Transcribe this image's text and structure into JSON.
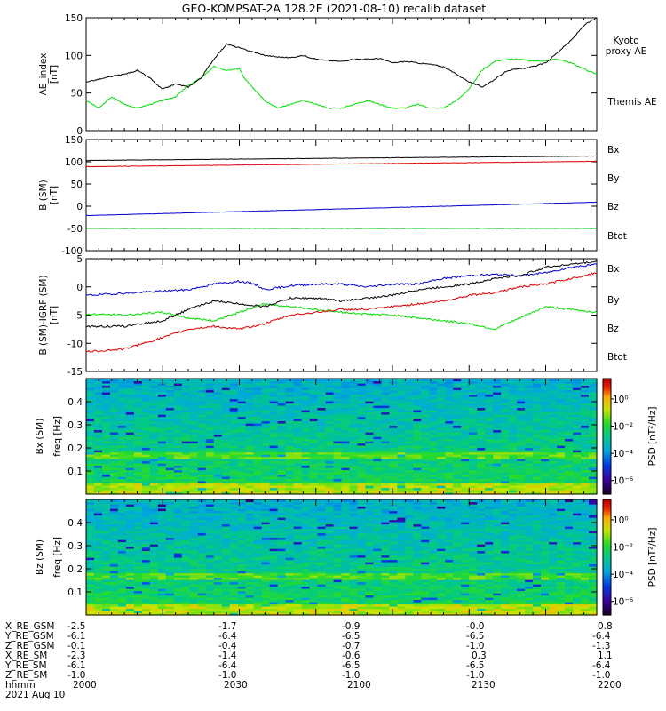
{
  "title": "GEO-KOMPSAT-2A 128.2E (2021-08-10) recalib dataset",
  "chart_data": [
    {
      "panel": "ae",
      "type": "line",
      "ylabel": "AE_index [nT]",
      "ylim": [
        0,
        150
      ],
      "yticks": [
        "0",
        "50",
        "100",
        "150"
      ],
      "xlim": [
        "2000",
        "2200"
      ],
      "series": [
        {
          "name": "Kyoto proxy AE",
          "color": "#00dd00",
          "x": [
            0,
            5,
            10,
            15,
            20,
            25,
            30,
            35,
            40,
            45,
            50,
            55,
            60,
            62,
            70,
            75,
            80,
            85,
            90,
            95,
            100,
            105,
            110,
            115,
            120,
            125,
            130,
            135,
            140,
            145,
            150,
            155,
            160,
            165,
            170,
            175,
            180,
            185,
            190,
            195,
            200
          ],
          "y": [
            40,
            30,
            45,
            35,
            30,
            35,
            40,
            45,
            60,
            70,
            85,
            80,
            82,
            70,
            40,
            30,
            35,
            40,
            35,
            30,
            30,
            35,
            40,
            35,
            30,
            30,
            35,
            30,
            30,
            40,
            55,
            80,
            92,
            95,
            95,
            92,
            93,
            95,
            90,
            82,
            75
          ]
        },
        {
          "name": "Themis AE",
          "color": "#000000",
          "x": [
            0,
            5,
            10,
            15,
            20,
            25,
            28,
            30,
            35,
            40,
            45,
            50,
            55,
            60,
            65,
            70,
            75,
            80,
            85,
            90,
            95,
            100,
            105,
            110,
            115,
            120,
            125,
            130,
            135,
            140,
            145,
            150,
            155,
            160,
            165,
            170,
            175,
            180,
            185,
            190,
            195,
            200
          ],
          "y": [
            65,
            68,
            72,
            75,
            80,
            70,
            60,
            55,
            62,
            58,
            70,
            95,
            115,
            110,
            105,
            100,
            98,
            97,
            100,
            95,
            93,
            92,
            95,
            95,
            96,
            90,
            92,
            90,
            88,
            85,
            75,
            65,
            58,
            68,
            80,
            82,
            85,
            90,
            105,
            120,
            140,
            150
          ]
        }
      ]
    },
    {
      "panel": "b",
      "type": "line",
      "ylabel": "B (SM) [nT]",
      "ylim": [
        -100,
        150
      ],
      "yticks": [
        "-100",
        "-50",
        "0",
        "50",
        "100",
        "150"
      ],
      "series": [
        {
          "name": "Bx",
          "color": "#0000cc",
          "x": [
            0,
            200
          ],
          "y": [
            -21,
            9
          ]
        },
        {
          "name": "By",
          "color": "#00dd00",
          "x": [
            0,
            200
          ],
          "y": [
            -50,
            -50
          ]
        },
        {
          "name": "Bz",
          "color": "#dd0000",
          "x": [
            0,
            200
          ],
          "y": [
            89,
            101
          ]
        },
        {
          "name": "Btot",
          "color": "#000000",
          "x": [
            0,
            200
          ],
          "y": [
            103,
            113
          ]
        }
      ]
    },
    {
      "panel": "dbm",
      "type": "line",
      "ylabel": "B (SM)-IGRF (SM) [nT]",
      "ylim": [
        -15,
        5
      ],
      "yticks": [
        "-15",
        "-10",
        "-5",
        "0",
        "5"
      ],
      "series": [
        {
          "name": "Bx",
          "color": "#0000cc",
          "x": [
            0,
            20,
            40,
            50,
            60,
            66,
            70,
            80,
            90,
            100,
            110,
            120,
            130,
            140,
            150,
            160,
            170,
            180,
            190,
            200
          ],
          "y": [
            -1.5,
            -1,
            -0.5,
            0.5,
            1,
            0.5,
            -0.5,
            0.2,
            0.5,
            0.5,
            0,
            0.5,
            0.5,
            1.5,
            2,
            2.2,
            2,
            2.5,
            3.5,
            4
          ]
        },
        {
          "name": "By",
          "color": "#00dd00",
          "x": [
            0,
            15,
            30,
            40,
            50,
            60,
            70,
            80,
            90,
            100,
            110,
            120,
            130,
            140,
            150,
            160,
            170,
            180,
            190,
            200
          ],
          "y": [
            -4.8,
            -5,
            -4.5,
            -5.5,
            -6,
            -4.5,
            -3,
            -3.5,
            -4,
            -4.5,
            -4.8,
            -5,
            -5.5,
            -6,
            -6.5,
            -7.5,
            -5.5,
            -3.5,
            -4,
            -4.5
          ]
        },
        {
          "name": "Bz",
          "color": "#dd0000",
          "x": [
            0,
            15,
            30,
            40,
            50,
            60,
            70,
            80,
            90,
            100,
            110,
            120,
            130,
            140,
            150,
            160,
            170,
            180,
            190,
            200
          ],
          "y": [
            -11.5,
            -11,
            -9,
            -7.5,
            -7,
            -7.5,
            -6.5,
            -5,
            -4.5,
            -4,
            -4,
            -3.5,
            -3,
            -2.5,
            -1.5,
            -1,
            0,
            0.5,
            1.5,
            2.5
          ]
        },
        {
          "name": "Btot",
          "color": "#000000",
          "x": [
            0,
            15,
            30,
            40,
            50,
            60,
            70,
            80,
            90,
            100,
            110,
            120,
            130,
            140,
            150,
            160,
            170,
            180,
            190,
            200
          ],
          "y": [
            -7,
            -7,
            -6,
            -4,
            -2.5,
            -3,
            -3.5,
            -2,
            -2,
            -2.5,
            -2,
            -1.5,
            -0.5,
            0,
            0.5,
            1.5,
            2,
            3.5,
            4,
            4.5
          ]
        }
      ]
    },
    {
      "panel": "specx",
      "type": "heatmap",
      "ylabel": "Bx (SM) freq [Hz]",
      "ylim": [
        0,
        0.5
      ],
      "yticks": [
        "0.1",
        "0.2",
        "0.3",
        "0.4"
      ],
      "colorbar_label": "PSD [nT²/Hz]",
      "colorbar_ticks": [
        "10⁰",
        "10⁻²",
        "10⁻⁴",
        "10⁻⁶"
      ],
      "colorbar_log_range": [
        -7,
        1.5
      ]
    },
    {
      "panel": "specz",
      "type": "heatmap",
      "ylabel": "Bz (SM) freq [Hz]",
      "ylim": [
        0,
        0.5
      ],
      "yticks": [
        "0.1",
        "0.2",
        "0.3",
        "0.4"
      ],
      "colorbar_label": "PSD [nT²/Hz]",
      "colorbar_ticks": [
        "10⁰",
        "10⁻²",
        "10⁻⁴",
        "10⁻⁶"
      ],
      "colorbar_log_range": [
        -7,
        1.5
      ]
    }
  ],
  "footer": {
    "labels": [
      "X_RE_GSM",
      "Y_RE_GSM",
      "Z_RE_GSM",
      "X_RE_SM",
      "Y_RE_SM",
      "Z_RE_SM",
      "hhmm",
      "2021 Aug 10"
    ],
    "columns": [
      [
        "-2.5",
        "-6.1",
        "-0.1",
        "-2.3",
        "-6.1",
        "-1.0",
        "2000"
      ],
      [
        "-1.7",
        "-6.4",
        "-0.4",
        "-1.4",
        "-6.4",
        "-1.0",
        "2030"
      ],
      [
        "-0.9",
        "-6.5",
        "-0.7",
        "-0.6",
        "-6.5",
        "-1.0",
        "2100"
      ],
      [
        "-0.0",
        "-6.5",
        "-1.0",
        "0.3",
        "-6.5",
        "-1.0",
        "2130"
      ],
      [
        "0.8",
        "-6.4",
        "-1.3",
        "1.1",
        "-6.4",
        "-1.0",
        "2200"
      ]
    ]
  }
}
